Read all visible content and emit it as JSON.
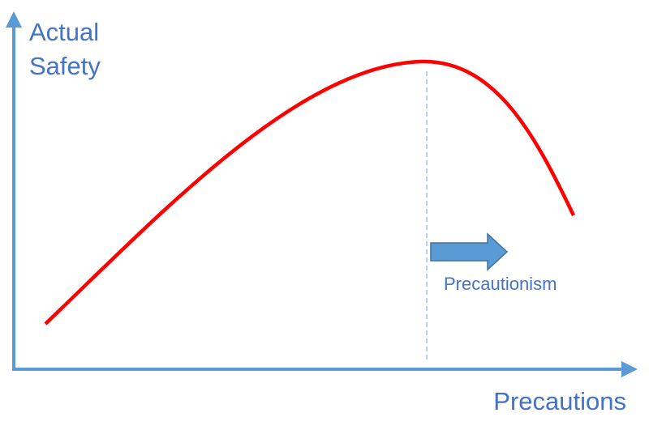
{
  "y_axis": {
    "label_lines": [
      "Actual",
      "Safety"
    ]
  },
  "x_axis": {
    "label": "Precautions"
  },
  "annotation": {
    "label": "Precautionism"
  }
}
